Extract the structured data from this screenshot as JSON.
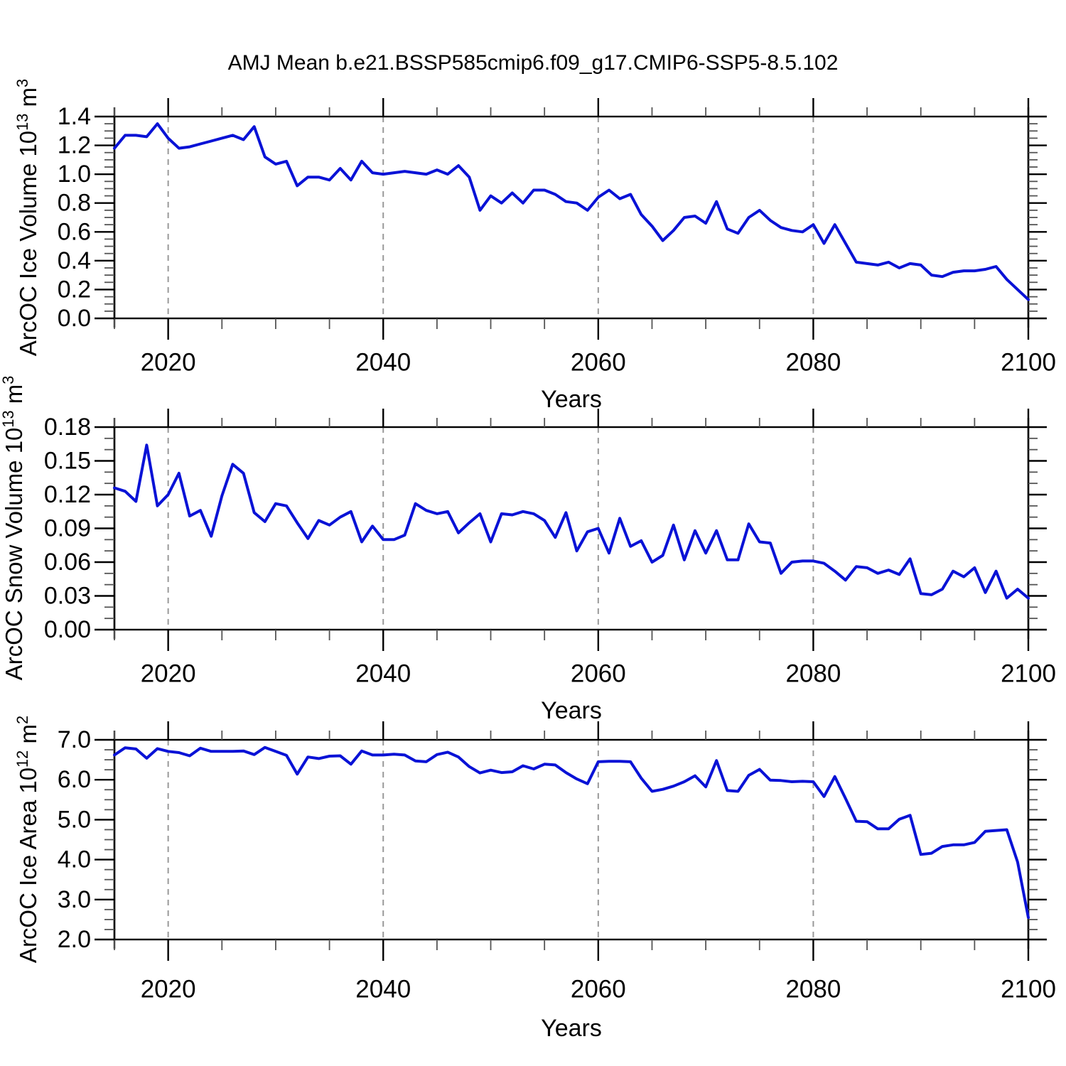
{
  "title": "AMJ Mean b.e21.BSSP585cmip6.f09_g17.CMIP6-SSP5-8.5.102",
  "xlabel": "Years",
  "line_color": "#0912d6",
  "grid_color": "#999999",
  "axis_color": "#000000",
  "minor_tick_color": "#555555",
  "chart_data": [
    {
      "type": "line",
      "name": "arcoc-ice-volume",
      "ylabel_parts": [
        {
          "t": "ArcOC Ice Volume 10"
        },
        {
          "sup": "13"
        },
        {
          "t": " m"
        },
        {
          "sup": "3"
        }
      ],
      "x_start": 2015,
      "x_end": 2100,
      "x_step": 1,
      "xticks": [
        2020,
        2040,
        2060,
        2080,
        2100
      ],
      "xtick_labels": [
        "2020",
        "2040",
        "2060",
        "2080",
        "2100"
      ],
      "x_minor_step": 5,
      "grid_years": [
        2020,
        2040,
        2060,
        2080
      ],
      "ylim": [
        0,
        1.4
      ],
      "yticks": [
        0.0,
        0.2,
        0.4,
        0.6,
        0.8,
        1.0,
        1.2,
        1.4
      ],
      "ytick_labels": [
        "0.0",
        "0.2",
        "0.4",
        "0.6",
        "0.8",
        "1.0",
        "1.2",
        "1.4"
      ],
      "y_minor_step": 0.05,
      "values": [
        1.18,
        1.27,
        1.27,
        1.26,
        1.35,
        1.25,
        1.18,
        1.19,
        1.21,
        1.23,
        1.25,
        1.27,
        1.24,
        1.33,
        1.12,
        1.07,
        1.09,
        0.92,
        0.98,
        0.98,
        0.96,
        1.04,
        0.96,
        1.09,
        1.01,
        1.0,
        1.01,
        1.02,
        1.01,
        1.0,
        1.03,
        1.0,
        1.06,
        0.98,
        0.75,
        0.85,
        0.8,
        0.87,
        0.8,
        0.89,
        0.89,
        0.86,
        0.81,
        0.8,
        0.75,
        0.84,
        0.89,
        0.83,
        0.86,
        0.72,
        0.64,
        0.54,
        0.61,
        0.7,
        0.71,
        0.66,
        0.81,
        0.62,
        0.59,
        0.7,
        0.75,
        0.68,
        0.63,
        0.61,
        0.6,
        0.65,
        0.52,
        0.65,
        0.52,
        0.39,
        0.38,
        0.37,
        0.39,
        0.35,
        0.38,
        0.37,
        0.3,
        0.29,
        0.32,
        0.33,
        0.33,
        0.34,
        0.36,
        0.27,
        0.2,
        0.13
      ]
    },
    {
      "type": "line",
      "name": "arcoc-snow-volume",
      "ylabel_parts": [
        {
          "t": "ArcOC Snow Volume 10"
        },
        {
          "sup": "13"
        },
        {
          "t": " m"
        },
        {
          "sup": "3"
        }
      ],
      "x_start": 2015,
      "x_end": 2100,
      "x_step": 1,
      "xticks": [
        2020,
        2040,
        2060,
        2080,
        2100
      ],
      "xtick_labels": [
        "2020",
        "2040",
        "2060",
        "2080",
        "2100"
      ],
      "x_minor_step": 5,
      "grid_years": [
        2020,
        2040,
        2060,
        2080
      ],
      "ylim": [
        0,
        0.18
      ],
      "yticks": [
        0.0,
        0.03,
        0.06,
        0.09,
        0.12,
        0.15,
        0.18
      ],
      "ytick_labels": [
        "0.00",
        "0.03",
        "0.06",
        "0.09",
        "0.12",
        "0.15",
        "0.18"
      ],
      "y_minor_step": 0.01,
      "values": [
        0.126,
        0.123,
        0.114,
        0.164,
        0.11,
        0.12,
        0.139,
        0.101,
        0.106,
        0.083,
        0.119,
        0.147,
        0.139,
        0.104,
        0.096,
        0.112,
        0.11,
        0.095,
        0.081,
        0.097,
        0.093,
        0.1,
        0.105,
        0.078,
        0.092,
        0.08,
        0.08,
        0.084,
        0.112,
        0.106,
        0.103,
        0.105,
        0.086,
        0.095,
        0.103,
        0.078,
        0.103,
        0.102,
        0.105,
        0.103,
        0.097,
        0.082,
        0.104,
        0.07,
        0.087,
        0.09,
        0.068,
        0.099,
        0.074,
        0.079,
        0.06,
        0.066,
        0.093,
        0.062,
        0.088,
        0.068,
        0.088,
        0.062,
        0.062,
        0.094,
        0.078,
        0.077,
        0.05,
        0.06,
        0.061,
        0.061,
        0.059,
        0.052,
        0.044,
        0.056,
        0.055,
        0.05,
        0.053,
        0.049,
        0.063,
        0.032,
        0.031,
        0.036,
        0.052,
        0.047,
        0.055,
        0.033,
        0.052,
        0.028,
        0.036,
        0.028
      ]
    },
    {
      "type": "line",
      "name": "arcoc-ice-area",
      "ylabel_parts": [
        {
          "t": "ArcOC Ice Area 10"
        },
        {
          "sup": "12"
        },
        {
          "t": " m"
        },
        {
          "sup": "2"
        }
      ],
      "x_start": 2015,
      "x_end": 2100,
      "x_step": 1,
      "xticks": [
        2020,
        2040,
        2060,
        2080,
        2100
      ],
      "xtick_labels": [
        "2020",
        "2040",
        "2060",
        "2080",
        "2100"
      ],
      "x_minor_step": 5,
      "grid_years": [
        2020,
        2040,
        2060,
        2080
      ],
      "ylim": [
        2.0,
        7.0
      ],
      "yticks": [
        2.0,
        3.0,
        4.0,
        5.0,
        6.0,
        7.0
      ],
      "ytick_labels": [
        "2.0",
        "3.0",
        "4.0",
        "5.0",
        "6.0",
        "7.0"
      ],
      "y_minor_step": 0.25,
      "values": [
        6.62,
        6.8,
        6.77,
        6.54,
        6.78,
        6.71,
        6.68,
        6.6,
        6.79,
        6.71,
        6.71,
        6.71,
        6.72,
        6.63,
        6.81,
        6.71,
        6.61,
        6.14,
        6.57,
        6.53,
        6.59,
        6.6,
        6.39,
        6.72,
        6.62,
        6.62,
        6.64,
        6.62,
        6.47,
        6.45,
        6.63,
        6.69,
        6.57,
        6.33,
        6.17,
        6.24,
        6.18,
        6.2,
        6.35,
        6.27,
        6.39,
        6.37,
        6.18,
        6.02,
        5.9,
        6.45,
        6.46,
        6.46,
        6.45,
        6.04,
        5.71,
        5.76,
        5.84,
        5.95,
        6.1,
        5.82,
        6.48,
        5.73,
        5.71,
        6.11,
        6.26,
        5.99,
        5.98,
        5.95,
        5.96,
        5.95,
        5.58,
        6.08,
        5.53,
        4.96,
        4.95,
        4.77,
        4.77,
        5.01,
        5.11,
        4.13,
        4.16,
        4.33,
        4.37,
        4.37,
        4.43,
        4.71,
        4.73,
        4.75,
        3.94,
        2.55
      ]
    }
  ]
}
